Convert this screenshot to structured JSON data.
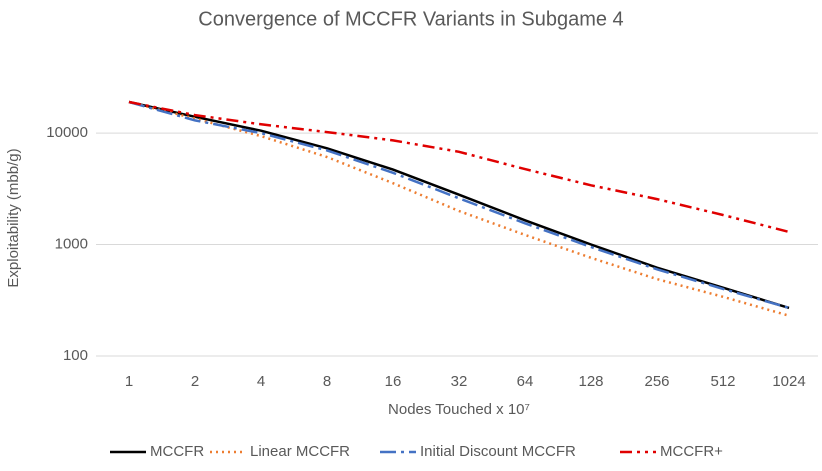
{
  "chart_data": {
    "type": "line",
    "title": "Convergence of MCCFR Variants in Subgame 4",
    "x_label": "Nodes Touched x 10⁷",
    "y_label": "Exploitability (mbb/g)",
    "categories": [
      "1",
      "2",
      "4",
      "8",
      "16",
      "32",
      "64",
      "128",
      "256",
      "512",
      "1024"
    ],
    "log_y": true,
    "grid": true,
    "legend": "bottom",
    "ylim": [
      100,
      40000
    ],
    "yticks": [
      100,
      1000,
      10000
    ],
    "series": [
      {
        "name": "MCCFR",
        "color": "#000000",
        "dash": "solid",
        "values": [
          19000,
          14000,
          10500,
          7300,
          4700,
          2800,
          1650,
          1000,
          620,
          410,
          270
        ]
      },
      {
        "name": "Linear MCCFR",
        "color": "#ed7d31",
        "dash": "dot",
        "values": [
          19000,
          13500,
          9400,
          6100,
          3550,
          2000,
          1220,
          760,
          490,
          340,
          230
        ]
      },
      {
        "name": "Initial Discount MCCFR",
        "color": "#4472c4",
        "dash": "longdashdot",
        "values": [
          19000,
          13000,
          10000,
          7000,
          4400,
          2600,
          1550,
          950,
          600,
          400,
          270
        ]
      },
      {
        "name": "MCCFR+",
        "color": "#e00000",
        "dash": "dashdotdot",
        "values": [
          19000,
          14500,
          12000,
          10200,
          8600,
          6800,
          4750,
          3400,
          2560,
          1840,
          1300
        ]
      }
    ]
  }
}
